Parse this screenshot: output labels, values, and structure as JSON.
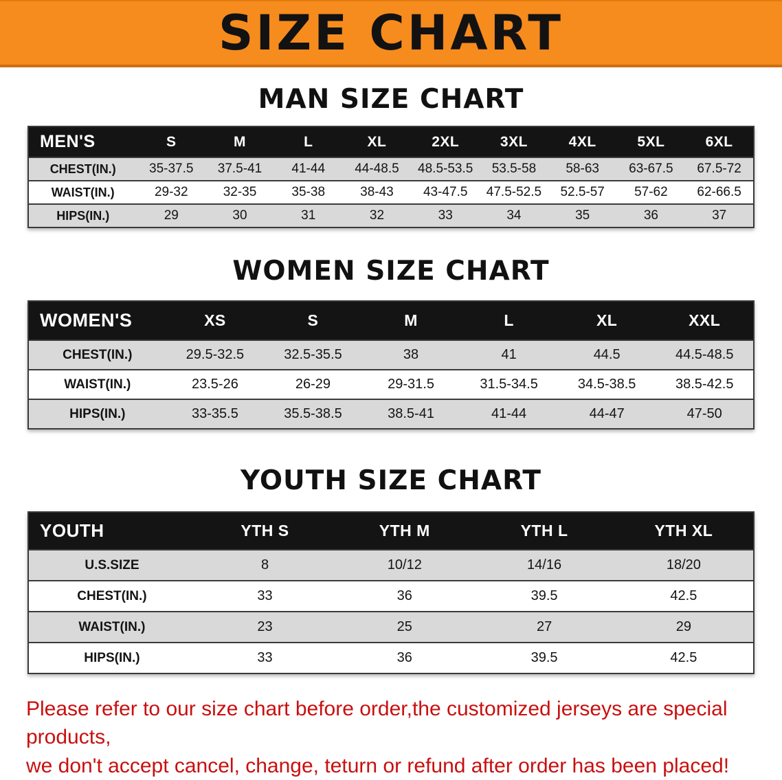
{
  "banner": {
    "title": "SIZE CHART",
    "bg_color": "#f68b1e"
  },
  "colors": {
    "header_bg": "#141414",
    "stripe_gray": "#d9d9d9",
    "notice_red": "#c8100f"
  },
  "sections": [
    {
      "id": "men",
      "heading": "MAN SIZE CHART",
      "table": {
        "header": [
          "MEN'S",
          "S",
          "M",
          "L",
          "XL",
          "2XL",
          "3XL",
          "4XL",
          "5XL",
          "6XL"
        ],
        "rows": [
          [
            "CHEST(IN.)",
            "35-37.5",
            "37.5-41",
            "41-44",
            "44-48.5",
            "48.5-53.5",
            "53.5-58",
            "58-63",
            "63-67.5",
            "67.5-72"
          ],
          [
            "WAIST(IN.)",
            "29-32",
            "32-35",
            "35-38",
            "38-43",
            "43-47.5",
            "47.5-52.5",
            "52.5-57",
            "57-62",
            "62-66.5"
          ],
          [
            "HIPS(IN.)",
            "29",
            "30",
            "31",
            "32",
            "33",
            "34",
            "35",
            "36",
            "37"
          ]
        ]
      }
    },
    {
      "id": "women",
      "heading": "WOMEN SIZE CHART",
      "table": {
        "header": [
          "WOMEN'S",
          "XS",
          "S",
          "M",
          "L",
          "XL",
          "XXL"
        ],
        "rows": [
          [
            "CHEST(IN.)",
            "29.5-32.5",
            "32.5-35.5",
            "38",
            "41",
            "44.5",
            "44.5-48.5"
          ],
          [
            "WAIST(IN.)",
            "23.5-26",
            "26-29",
            "29-31.5",
            "31.5-34.5",
            "34.5-38.5",
            "38.5-42.5"
          ],
          [
            "HIPS(IN.)",
            "33-35.5",
            "35.5-38.5",
            "38.5-41",
            "41-44",
            "44-47",
            "47-50"
          ]
        ]
      }
    },
    {
      "id": "youth",
      "heading": "YOUTH SIZE CHART",
      "table": {
        "header": [
          "YOUTH",
          "YTH S",
          "YTH M",
          "YTH L",
          "YTH XL"
        ],
        "rows": [
          [
            "U.S.SIZE",
            "8",
            "10/12",
            "14/16",
            "18/20"
          ],
          [
            "CHEST(IN.)",
            "33",
            "36",
            "39.5",
            "42.5"
          ],
          [
            "WAIST(IN.)",
            "23",
            "25",
            "27",
            "29"
          ],
          [
            "HIPS(IN.)",
            "33",
            "36",
            "39.5",
            "42.5"
          ]
        ]
      }
    }
  ],
  "footer": {
    "lines": [
      "Please refer to our size chart before order,the customized jerseys are special products,",
      "we don't accept cancel, change, teturn or refund after order has been placed!"
    ]
  }
}
